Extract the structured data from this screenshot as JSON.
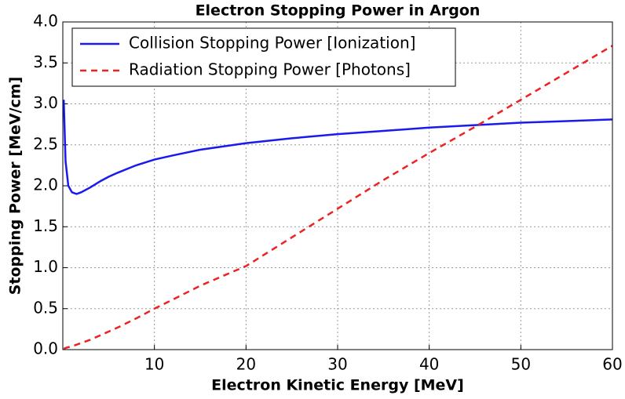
{
  "chart_data": {
    "type": "line",
    "title": "Electron Stopping Power in Argon",
    "x_label": "Electron Kinetic Energy [MeV]",
    "y_label": "Stopping Power [MeV/cm]",
    "x": [
      0.1,
      0.3,
      0.6,
      1,
      1.5,
      2,
      3,
      4,
      5,
      6,
      8,
      10,
      12,
      15,
      20,
      25,
      30,
      35,
      40,
      45,
      50,
      55,
      60
    ],
    "series": [
      {
        "name": "Collision Stopping Power [Ionization]",
        "color": "#1a1aee",
        "dash": "solid",
        "values": [
          3.05,
          2.3,
          2.0,
          1.92,
          1.9,
          1.92,
          1.98,
          2.05,
          2.11,
          2.16,
          2.25,
          2.32,
          2.37,
          2.44,
          2.52,
          2.58,
          2.63,
          2.67,
          2.71,
          2.74,
          2.77,
          2.79,
          2.81
        ]
      },
      {
        "name": "Radiation Stopping Power [Photons]",
        "color": "#ee2222",
        "dash": "dashed",
        "values": [
          0.01,
          0.02,
          0.03,
          0.04,
          0.06,
          0.08,
          0.12,
          0.17,
          0.22,
          0.27,
          0.38,
          0.5,
          0.61,
          0.78,
          1.02,
          1.37,
          1.72,
          2.07,
          2.4,
          2.72,
          3.05,
          3.38,
          3.71
        ]
      }
    ],
    "xlim": [
      0,
      60
    ],
    "xticks": [
      10,
      20,
      30,
      40,
      50,
      60
    ],
    "ylim": [
      0,
      4
    ],
    "yticks": [
      {
        "value": 0,
        "label": "0.0"
      },
      0.5,
      {
        "value": 1,
        "label": "1.0"
      },
      1.5,
      {
        "value": 2,
        "label": "2.0"
      },
      2.5,
      {
        "value": 3,
        "label": "3.0"
      },
      3.5,
      {
        "value": 4,
        "label": "4.0"
      }
    ],
    "grid": true,
    "legend": "upper left"
  }
}
